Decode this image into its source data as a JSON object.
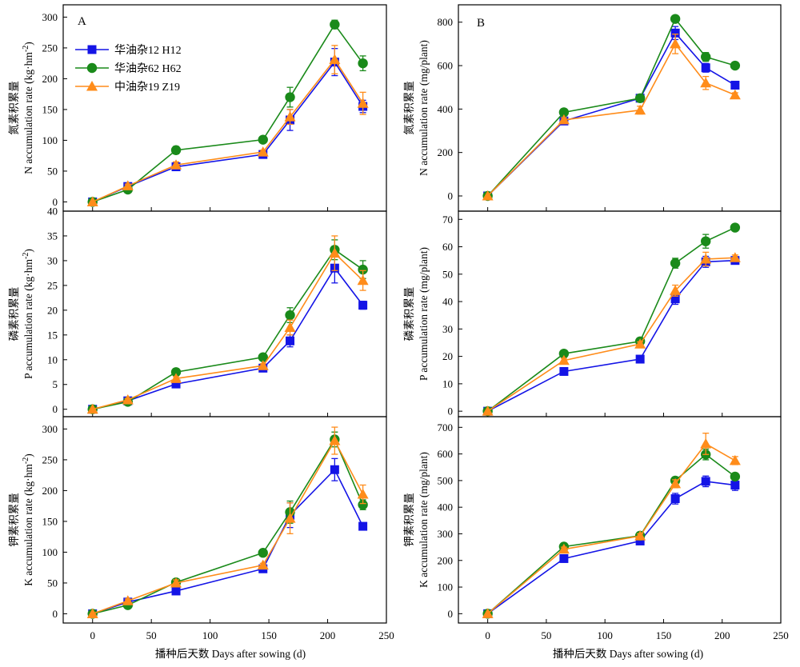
{
  "x_axis_label": "播种后天数 Days after sowing (d)",
  "panel_letters": {
    "A": "A",
    "B": "B"
  },
  "legend": [
    {
      "label": "华油杂12 H12",
      "color": "#1414e6",
      "marker": "square"
    },
    {
      "label": "华油杂62 H62",
      "color": "#1a8a1a",
      "marker": "circle"
    },
    {
      "label": "中油杂19 Z19",
      "color": "#ff8c1a",
      "marker": "triangle"
    }
  ],
  "chart_data": [
    {
      "type": "line",
      "panel": "A-N",
      "ylabel_cn": "氮素积累量",
      "ylabel_en": "N accumulation rate (kg·hm",
      "ylabel_sup": "-2",
      "ylabel_tail": ")",
      "xlim": [
        -25,
        250
      ],
      "ylim": [
        -15,
        320
      ],
      "xticks": [
        0,
        50,
        100,
        150,
        200,
        250
      ],
      "yticks": [
        0,
        50,
        100,
        150,
        200,
        250,
        300
      ],
      "x": [
        0,
        30,
        71,
        145,
        168,
        206,
        230
      ],
      "series": [
        {
          "name": "华油杂12 H12",
          "values": [
            0,
            25,
            57,
            77,
            133,
            227,
            155
          ],
          "errors": [
            0,
            4,
            4,
            4,
            17,
            22,
            10
          ]
        },
        {
          "name": "华油杂62 H62",
          "values": [
            0,
            20,
            84,
            101,
            170,
            288,
            225
          ],
          "errors": [
            0,
            3,
            6,
            4,
            16,
            7,
            12
          ]
        },
        {
          "name": "中油杂19 Z19",
          "values": [
            0,
            26,
            60,
            81,
            138,
            231,
            160
          ],
          "errors": [
            0,
            3,
            5,
            3,
            12,
            23,
            18
          ]
        }
      ]
    },
    {
      "type": "line",
      "panel": "A-P",
      "ylabel_cn": "磷素积累量",
      "ylabel_en": "P accumulation rate (kg·hm",
      "ylabel_sup": "-2",
      "ylabel_tail": ")",
      "xlim": [
        -25,
        250
      ],
      "ylim": [
        -1.5,
        40
      ],
      "xticks": [
        0,
        50,
        100,
        150,
        200,
        250
      ],
      "yticks": [
        0,
        5,
        10,
        15,
        20,
        25,
        30,
        35,
        40
      ],
      "x": [
        0,
        30,
        71,
        145,
        168,
        206,
        230
      ],
      "series": [
        {
          "name": "华油杂12 H12",
          "values": [
            0,
            1.7,
            5.1,
            8.3,
            13.8,
            28.5,
            21
          ],
          "errors": [
            0,
            0.2,
            0.3,
            0.4,
            1.2,
            3,
            0.8
          ]
        },
        {
          "name": "华油杂62 H62",
          "values": [
            0,
            1.5,
            7.5,
            10.5,
            19,
            32.2,
            28.2
          ],
          "errors": [
            0,
            0.2,
            0.3,
            0.4,
            1.5,
            2,
            1.8
          ]
        },
        {
          "name": "中油杂19 Z19",
          "values": [
            0,
            1.9,
            6.2,
            8.8,
            16.5,
            31.5,
            26
          ],
          "errors": [
            0,
            0.3,
            0.4,
            0.4,
            1.5,
            3.5,
            2
          ]
        }
      ]
    },
    {
      "type": "line",
      "panel": "A-K",
      "ylabel_cn": "钾素积累量",
      "ylabel_en": "K accumulation rate (kg·hm",
      "ylabel_sup": "-2",
      "ylabel_tail": ")",
      "xlim": [
        -25,
        250
      ],
      "ylim": [
        -15,
        320
      ],
      "xticks": [
        0,
        50,
        100,
        150,
        200,
        250
      ],
      "yticks": [
        0,
        50,
        100,
        150,
        200,
        250,
        300
      ],
      "x": [
        0,
        30,
        71,
        145,
        168,
        206,
        230
      ],
      "series": [
        {
          "name": "华油杂12 H12",
          "values": [
            0,
            19,
            37,
            73,
            160,
            234,
            142
          ],
          "errors": [
            0,
            3,
            4,
            4,
            20,
            18,
            5
          ]
        },
        {
          "name": "华油杂62 H62",
          "values": [
            0,
            14,
            51,
            99,
            165,
            283,
            177
          ],
          "errors": [
            0,
            3,
            4,
            4,
            18,
            12,
            8
          ]
        },
        {
          "name": "中油杂19 Z19",
          "values": [
            0,
            21,
            50,
            79,
            155,
            281,
            194
          ],
          "errors": [
            0,
            3,
            5,
            3,
            25,
            22,
            15
          ]
        }
      ]
    },
    {
      "type": "line",
      "panel": "B-N",
      "ylabel_cn": "氮素积累量",
      "ylabel_en": "N accumulation rate (mg/plant)",
      "ylabel_sup": "",
      "ylabel_tail": "",
      "xlim": [
        -25,
        250
      ],
      "ylim": [
        -70,
        880
      ],
      "xticks": [
        0,
        50,
        100,
        150,
        200,
        250
      ],
      "yticks": [
        0,
        200,
        400,
        600,
        800
      ],
      "x": [
        0,
        65,
        130,
        160,
        186,
        211
      ],
      "series": [
        {
          "name": "华油杂12 H12",
          "values": [
            0,
            345,
            450,
            750,
            590,
            510
          ],
          "errors": [
            0,
            10,
            12,
            30,
            20,
            10
          ]
        },
        {
          "name": "华油杂62 H62",
          "values": [
            0,
            385,
            450,
            815,
            640,
            600
          ],
          "errors": [
            0,
            10,
            12,
            12,
            20,
            10
          ]
        },
        {
          "name": "中油杂19 Z19",
          "values": [
            0,
            350,
            395,
            700,
            520,
            465
          ],
          "errors": [
            0,
            10,
            18,
            45,
            30,
            10
          ]
        }
      ]
    },
    {
      "type": "line",
      "panel": "B-P",
      "ylabel_cn": "磷素积累量",
      "ylabel_en": "P accumulation rate (mg/plant)",
      "ylabel_sup": "",
      "ylabel_tail": "",
      "xlim": [
        -25,
        250
      ],
      "ylim": [
        -2,
        73
      ],
      "xticks": [
        0,
        50,
        100,
        150,
        200,
        250
      ],
      "yticks": [
        0,
        10,
        20,
        30,
        40,
        50,
        60,
        70
      ],
      "x": [
        0,
        65,
        130,
        160,
        186,
        211
      ],
      "series": [
        {
          "name": "华油杂12 H12",
          "values": [
            0,
            14.5,
            19,
            41,
            54.5,
            55
          ],
          "errors": [
            0,
            0.8,
            0.8,
            2,
            2,
            1
          ]
        },
        {
          "name": "华油杂62 H62",
          "values": [
            0,
            21,
            25.5,
            54,
            62,
            67
          ],
          "errors": [
            0,
            0.8,
            0.8,
            1.8,
            2.5,
            0.8
          ]
        },
        {
          "name": "中油杂19 Z19",
          "values": [
            0,
            18.5,
            24.5,
            44,
            55.5,
            56
          ],
          "errors": [
            0,
            0.8,
            0.8,
            2,
            2.5,
            1
          ]
        }
      ]
    },
    {
      "type": "line",
      "panel": "B-K",
      "ylabel_cn": "钾素积累量",
      "ylabel_en": "K accumulation rate (mg/plant)",
      "ylabel_sup": "",
      "ylabel_tail": "",
      "xlim": [
        -25,
        250
      ],
      "ylim": [
        -35,
        740
      ],
      "xticks": [
        0,
        50,
        100,
        150,
        200,
        250
      ],
      "yticks": [
        0,
        100,
        200,
        300,
        400,
        500,
        600,
        700
      ],
      "x": [
        0,
        65,
        130,
        160,
        186,
        211
      ],
      "series": [
        {
          "name": "华油杂12 H12",
          "values": [
            0,
            207,
            273,
            432,
            497,
            483
          ],
          "errors": [
            0,
            8,
            8,
            20,
            20,
            20
          ]
        },
        {
          "name": "华油杂62 H62",
          "values": [
            0,
            252,
            293,
            500,
            598,
            515
          ],
          "errors": [
            0,
            8,
            8,
            12,
            20,
            10
          ]
        },
        {
          "name": "中油杂19 Z19",
          "values": [
            0,
            242,
            292,
            488,
            638,
            575
          ],
          "errors": [
            0,
            8,
            8,
            15,
            40,
            15
          ]
        }
      ]
    }
  ]
}
